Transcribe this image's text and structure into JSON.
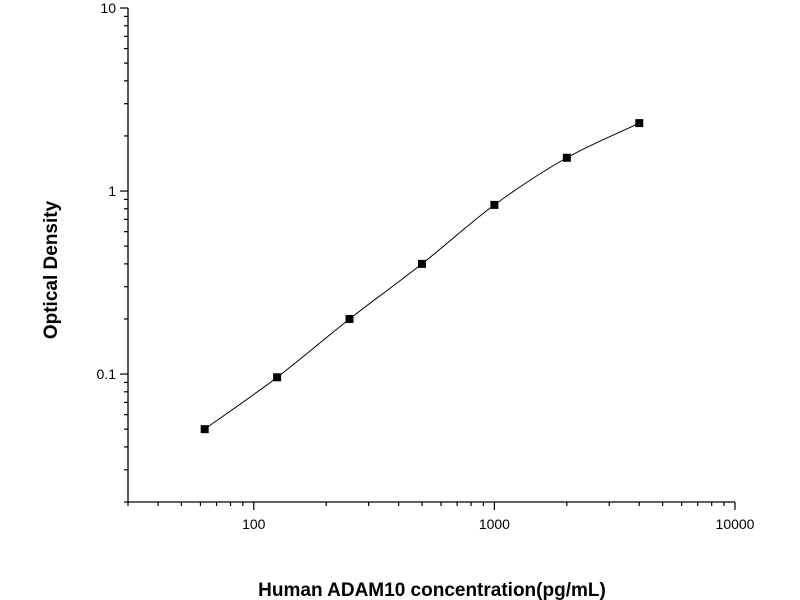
{
  "chart_data": {
    "type": "scatter",
    "title": "",
    "xlabel": "Human ADAM10 concentration(pg/mL)",
    "ylabel": "Optical Density",
    "x_scale": "log",
    "y_scale": "log",
    "xlim": [
      30,
      10000
    ],
    "ylim": [
      0.02,
      10
    ],
    "x_ticks": [
      100,
      1000,
      10000
    ],
    "x_tick_labels": [
      "100",
      "1000",
      "10000"
    ],
    "y_ticks": [
      0.1,
      1,
      10
    ],
    "y_tick_labels": [
      "0.1",
      "1",
      "10"
    ],
    "grid": false,
    "legend": "none",
    "marker": "square",
    "fit_curve": "smooth",
    "colors": {
      "points": "#000000",
      "line": "#000000",
      "axes": "#000000"
    },
    "series": [
      {
        "x": [
          62.5,
          125,
          250,
          500,
          1000,
          2000,
          4000
        ],
        "y": [
          0.05,
          0.096,
          0.2,
          0.4,
          0.84,
          1.52,
          2.35
        ]
      }
    ]
  }
}
